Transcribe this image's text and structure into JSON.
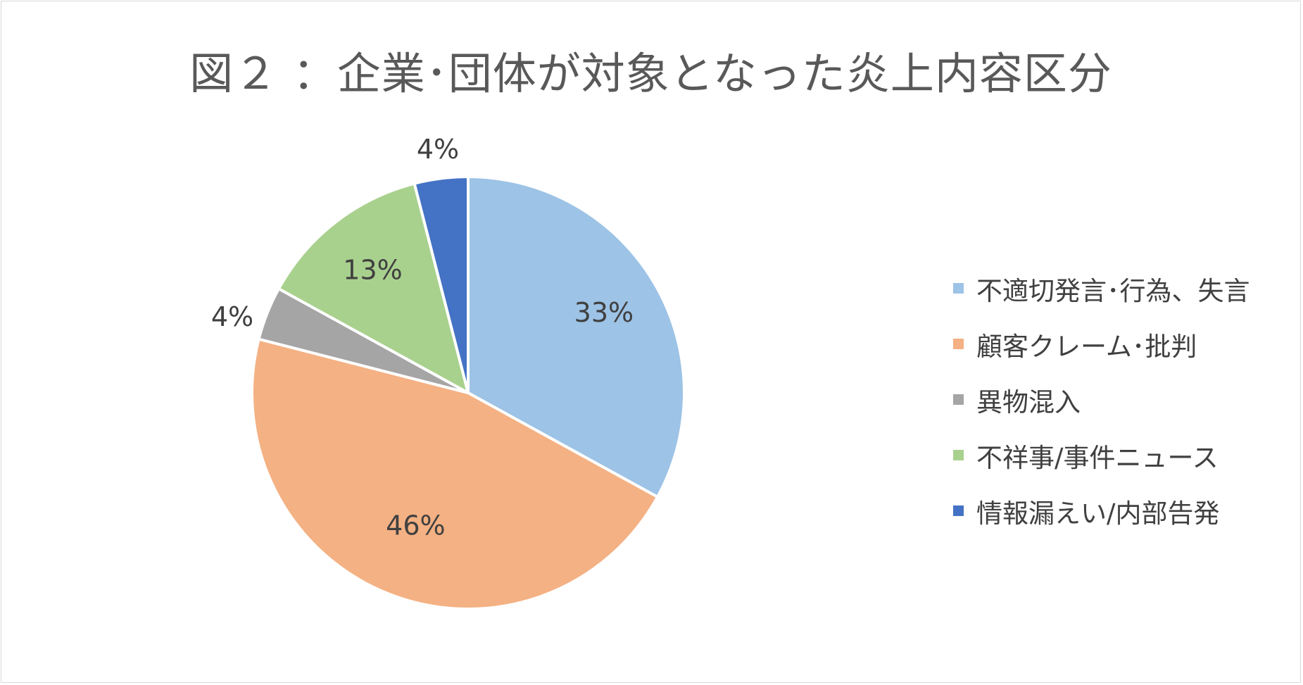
{
  "chart_data": {
    "type": "pie",
    "title": "図２ ：企業･団体が対象となった炎上内容区分",
    "categories": [
      "不適切発言･行為、失言",
      "顧客クレーム･批判",
      "異物混入",
      "不祥事/事件ニュース",
      "情報漏えい/内部告発"
    ],
    "values": [
      33,
      46,
      4,
      13,
      4
    ],
    "data_labels": [
      "33%",
      "46%",
      "4%",
      "13%",
      "4%"
    ],
    "colors": [
      "#9DC3E6",
      "#F4B183",
      "#A5A5A5",
      "#A9D18E",
      "#4472C4"
    ],
    "start_angle_deg": 0,
    "direction": "clockwise",
    "legend_position": "right",
    "slice_border_color": "#ffffff"
  }
}
